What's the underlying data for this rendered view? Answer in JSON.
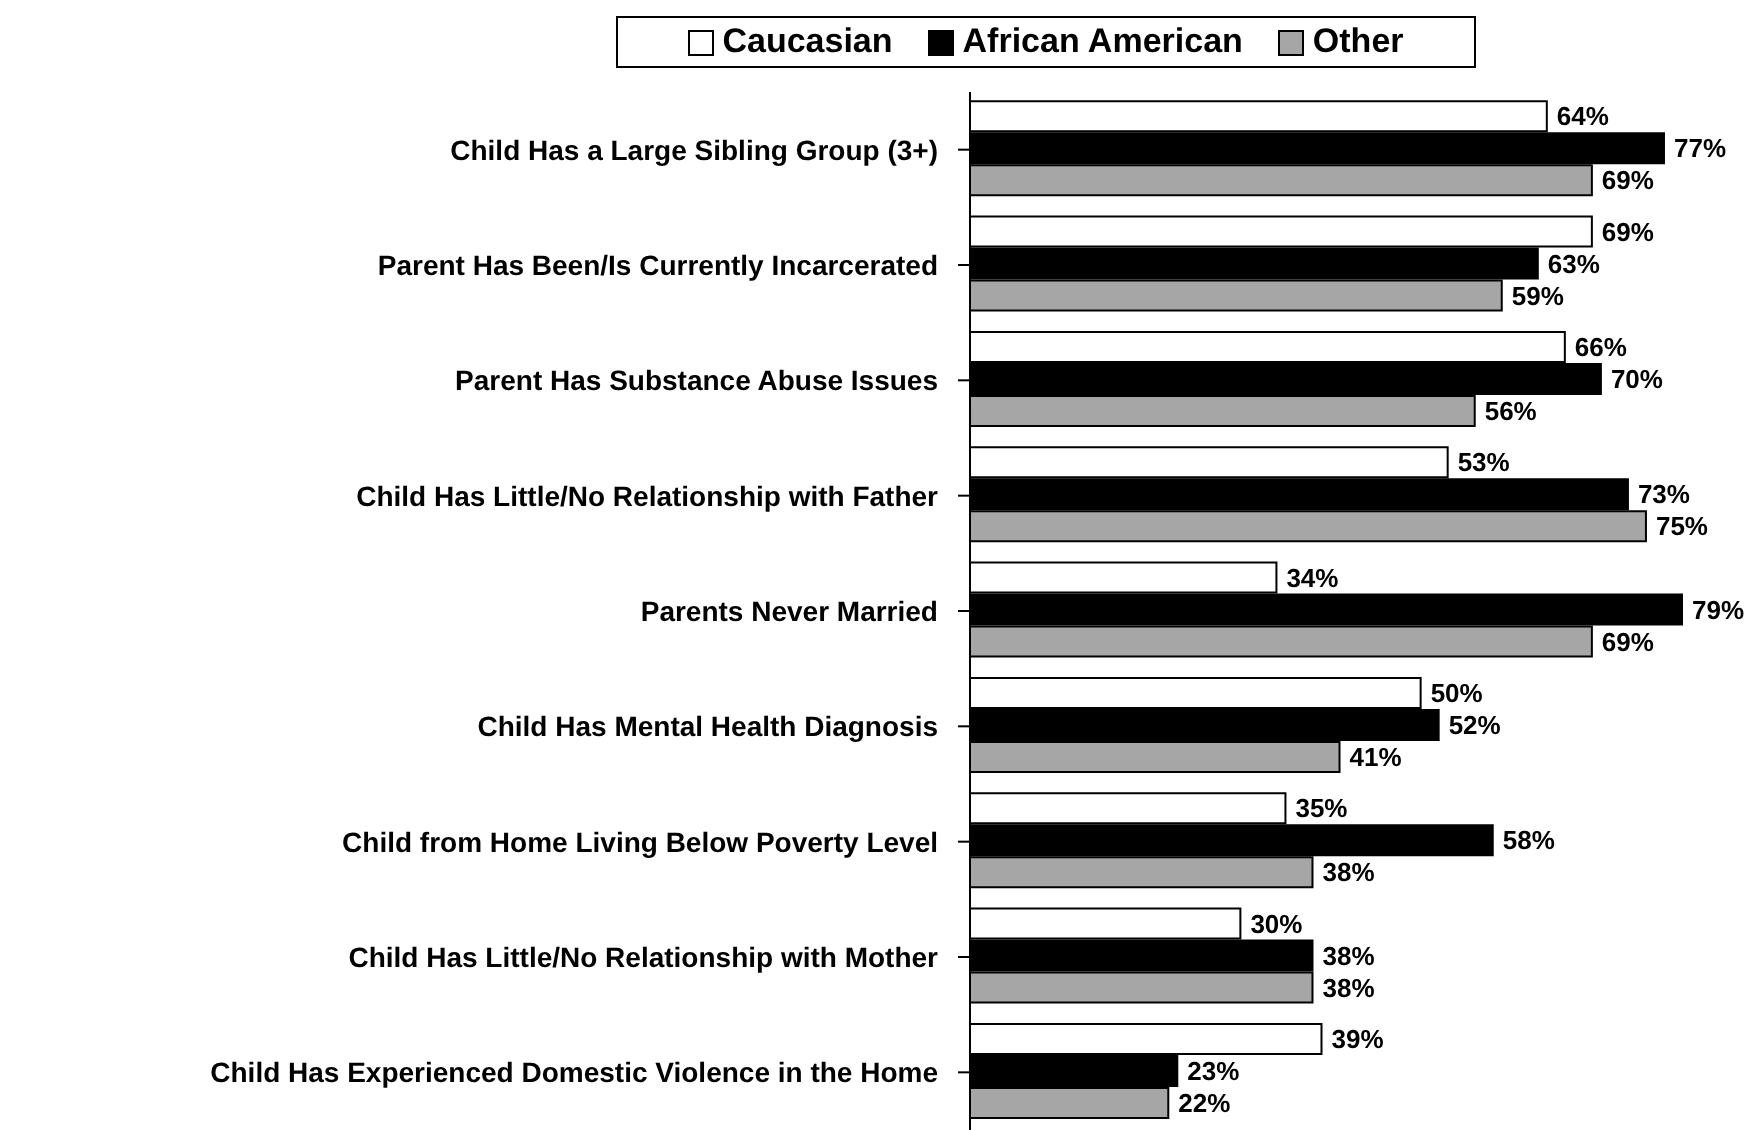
{
  "chart_data": {
    "type": "bar",
    "orientation": "horizontal",
    "legend": "top",
    "categories": [
      "Child Has a Large Sibling Group (3+)",
      "Parent Has Been/Is Currently Incarcerated",
      "Parent Has Substance Abuse Issues",
      "Child Has Little/No Relationship with Father",
      "Parents Never Married",
      "Child Has Mental Health Diagnosis",
      "Child from Home Living Below Poverty Level",
      "Child Has Little/No Relationship with Mother",
      "Child Has Experienced Domestic Violence in the Home"
    ],
    "series": [
      {
        "name": "Caucasian",
        "color": "#ffffff",
        "values": [
          64,
          69,
          66,
          53,
          34,
          50,
          35,
          30,
          39
        ],
        "value_labels": [
          "64%",
          "69%",
          "66%",
          "53%",
          "34%",
          "50%",
          "35%",
          "30%",
          "39%"
        ]
      },
      {
        "name": "African American",
        "color": "#000000",
        "values": [
          77,
          63,
          70,
          73,
          79,
          52,
          58,
          38,
          23
        ],
        "value_labels": [
          "77%",
          "63%",
          "70%",
          "73%",
          "79%",
          "52%",
          "58%",
          "38%",
          "23%"
        ]
      },
      {
        "name": "Other",
        "color": "#a6a6a6",
        "values": [
          69,
          59,
          56,
          75,
          69,
          41,
          38,
          38,
          22
        ],
        "value_labels": [
          "69%",
          "59%",
          "56%",
          "75%",
          "69%",
          "41%",
          "38%",
          "38%",
          "22%"
        ]
      }
    ]
  }
}
